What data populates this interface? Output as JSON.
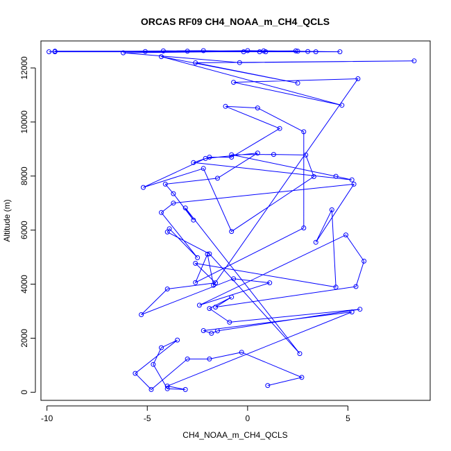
{
  "chart_data": {
    "type": "line",
    "title": "ORCAS RF09 CH4_NOAA_m_CH4_QCLS",
    "xlabel": "CH4_NOAA_m_CH4_QCLS",
    "ylabel": "Altitude (m)",
    "xlim": [
      -10.3,
      9.1
    ],
    "ylim": [
      -300,
      13000
    ],
    "xticks": [
      -10,
      -5,
      0,
      5
    ],
    "yticks": [
      0,
      2000,
      4000,
      6000,
      8000,
      10000,
      12000
    ],
    "grid": false,
    "marker": "open-circle",
    "colors": {
      "series": "#0000ff",
      "axis": "#000000"
    },
    "series": [
      {
        "points": [
          [
            1.0,
            250
          ],
          [
            2.7,
            550
          ],
          [
            -0.3,
            1480
          ],
          [
            -1.9,
            1230
          ],
          [
            -3.0,
            1230
          ],
          [
            -4.8,
            100
          ],
          [
            -5.6,
            700
          ],
          [
            -3.5,
            1930
          ],
          [
            -4.3,
            1650
          ],
          [
            -4.7,
            1030
          ],
          [
            -4.0,
            130
          ],
          [
            -3.1,
            100
          ],
          [
            -4.0,
            230
          ],
          [
            5.2,
            2970
          ],
          [
            -2.2,
            2280
          ],
          [
            -1.8,
            2180
          ],
          [
            -1.5,
            2270
          ],
          [
            5.6,
            3070
          ],
          [
            -0.9,
            2590
          ],
          [
            -1.9,
            3100
          ],
          [
            -0.8,
            3520
          ],
          [
            -1.6,
            3150
          ],
          [
            5.4,
            3910
          ],
          [
            5.8,
            4850
          ],
          [
            4.9,
            5820
          ],
          [
            -2.4,
            3220
          ],
          [
            1.1,
            4050
          ],
          [
            -0.7,
            4200
          ],
          [
            -5.3,
            2870
          ],
          [
            -4.0,
            3820
          ],
          [
            -1.6,
            4050
          ],
          [
            -2.6,
            4770
          ],
          [
            4.4,
            3890
          ],
          [
            4.2,
            6750
          ],
          [
            3.4,
            5550
          ],
          [
            5.3,
            7700
          ],
          [
            -3.7,
            7000
          ],
          [
            -4.3,
            6650
          ],
          [
            -2.5,
            4980
          ],
          [
            -3.9,
            6050
          ],
          [
            -4.0,
            5930
          ],
          [
            -1.9,
            5120
          ],
          [
            2.6,
            1430
          ],
          [
            -3.1,
            6820
          ],
          [
            -2.7,
            6370
          ],
          [
            -3.7,
            7350
          ],
          [
            -4.1,
            7700
          ],
          [
            -1.5,
            7920
          ],
          [
            0.5,
            8850
          ],
          [
            -2.1,
            8650
          ],
          [
            -5.2,
            7580
          ],
          [
            -2.2,
            8280
          ],
          [
            -0.8,
            5950
          ],
          [
            3.3,
            7980
          ],
          [
            2.9,
            8780
          ],
          [
            1.3,
            8800
          ],
          [
            -0.8,
            8790
          ],
          [
            4.4,
            7990
          ],
          [
            5.2,
            7860
          ],
          [
            -2.7,
            8500
          ],
          [
            -1.9,
            8700
          ],
          [
            -0.8,
            8700
          ],
          [
            1.6,
            9760
          ],
          [
            -1.1,
            10580
          ],
          [
            0.5,
            10520
          ],
          [
            2.8,
            9640
          ],
          [
            2.8,
            6080
          ],
          [
            -2.6,
            4060
          ],
          [
            -2.0,
            5110
          ],
          [
            -1.7,
            3960
          ],
          [
            5.5,
            11600
          ],
          [
            -0.7,
            11470
          ],
          [
            4.7,
            10620
          ],
          [
            -4.3,
            12420
          ],
          [
            2.5,
            11440
          ],
          [
            -2.6,
            12190
          ],
          [
            8.3,
            12260
          ],
          [
            -0.4,
            12200
          ],
          [
            -6.2,
            12560
          ],
          [
            2.4,
            12630
          ],
          [
            -9.6,
            12600
          ],
          [
            4.6,
            12600
          ],
          [
            0.0,
            12640
          ],
          [
            -5.1,
            12610
          ],
          [
            2.5,
            12620
          ],
          [
            -9.9,
            12600
          ],
          [
            -2.2,
            12640
          ],
          [
            0.6,
            12600
          ],
          [
            -4.2,
            12630
          ],
          [
            3.0,
            12610
          ],
          [
            -3.0,
            12620
          ],
          [
            3.4,
            12600
          ],
          [
            -0.2,
            12600
          ],
          [
            0.8,
            12630
          ],
          [
            -9.6,
            12620
          ],
          [
            0.9,
            12600
          ]
        ]
      }
    ]
  }
}
